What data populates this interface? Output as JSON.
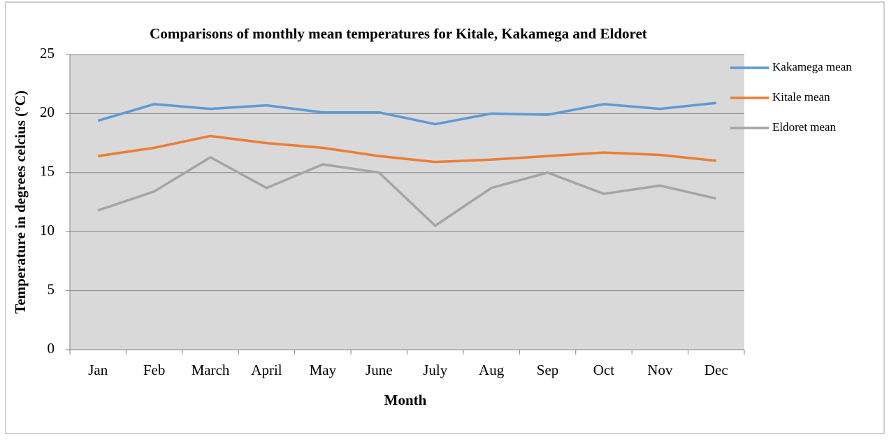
{
  "chart_data": {
    "type": "line",
    "title": "Comparisons of monthly mean temperatures for Kitale, Kakamega and Eldoret",
    "x_label": "Month",
    "y_label": "Temperature in degrees celcius (°C)",
    "categories": [
      "Jan",
      "Feb",
      "March",
      "April",
      "May",
      "June",
      "July",
      "Aug",
      "Sep",
      "Oct",
      "Nov",
      "Dec"
    ],
    "series": [
      {
        "name": "Kakamega mean",
        "color": "#5b9bd5",
        "values": [
          19.4,
          20.8,
          20.4,
          20.7,
          20.1,
          20.1,
          19.1,
          20.0,
          19.9,
          20.8,
          20.4,
          20.9
        ]
      },
      {
        "name": "Kitale mean",
        "color": "#ed7d31",
        "values": [
          16.4,
          17.1,
          18.1,
          17.5,
          17.1,
          16.4,
          15.9,
          16.1,
          16.4,
          16.7,
          16.5,
          16.0
        ]
      },
      {
        "name": "Eldoret mean",
        "color": "#a5a5a5",
        "values": [
          11.8,
          13.4,
          16.3,
          13.7,
          15.7,
          15.0,
          10.5,
          13.7,
          15.0,
          13.2,
          13.9,
          12.8
        ]
      }
    ],
    "ylim": [
      0,
      25
    ],
    "yticks": [
      0,
      5,
      10,
      15,
      20,
      25
    ],
    "grid": true,
    "legend": "right"
  }
}
